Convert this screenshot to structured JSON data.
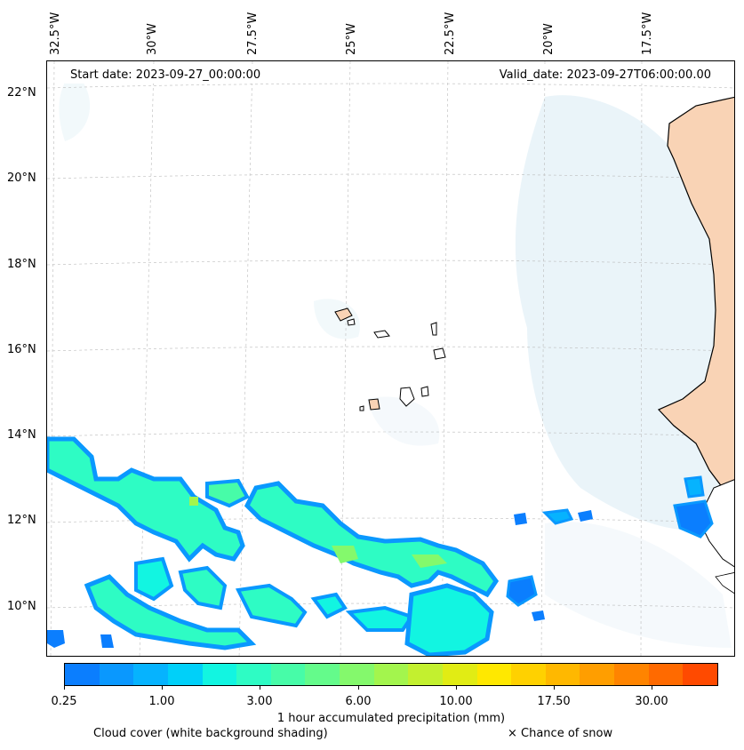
{
  "map": {
    "start_date": "Start date: 2023-09-27_00:00:00",
    "valid_date": "Valid_date: 2023-09-27T06:00:00.00",
    "lon_labels": [
      "32.5°W",
      "30°W",
      "27.5°W",
      "25°W",
      "22.5°W",
      "20°W",
      "17.5°W"
    ],
    "lat_labels": [
      "22°N",
      "20°N",
      "18°N",
      "16°N",
      "14°N",
      "12°N",
      "10°N"
    ],
    "colors": {
      "coastline": "#000000",
      "land_fill": "#f9d3b5",
      "cloud_shade": "#d9ecf5",
      "grid": "#bbbbbb"
    }
  },
  "legend": {
    "colorbar_label": "1 hour accumulated precipitation (mm)",
    "tick_labels": [
      "0.25",
      "1.00",
      "3.00",
      "6.00",
      "10.00",
      "17.50",
      "30.00"
    ],
    "colors": [
      "#0b7efe",
      "#0a98fe",
      "#06b3fe",
      "#00d0f9",
      "#12f5e1",
      "#2efcc4",
      "#47fca8",
      "#64fb8b",
      "#84f96c",
      "#a3f54d",
      "#c3f02f",
      "#e1ec14",
      "#ffe800",
      "#ffd100",
      "#ffb800",
      "#ff9e00",
      "#ff8400",
      "#ff6a00",
      "#ff4a00"
    ],
    "cloud_note": "Cloud cover (white background shading)",
    "snow_note": "× Chance of snow"
  }
}
